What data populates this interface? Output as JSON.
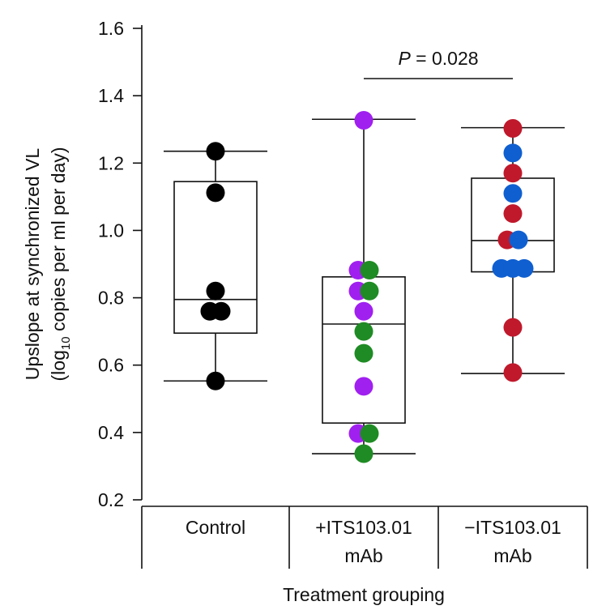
{
  "chart_data": {
    "type": "box",
    "title": "",
    "ylabel_line1": "Upslope at synchronized VL",
    "ylabel_line2_pre": "(log",
    "ylabel_line2_sub": "10",
    "ylabel_line2_post": " copies per ml per day)",
    "xlabel": "Treatment grouping",
    "ylim": [
      0.2,
      1.6
    ],
    "yticks": [
      "0.2",
      "0.4",
      "0.6",
      "0.8",
      "1.0",
      "1.2",
      "1.4",
      "1.6"
    ],
    "groups": [
      {
        "label_lines": [
          "Control"
        ],
        "box": {
          "whisker_low": 0.553,
          "q1": 0.695,
          "median": 0.795,
          "q3": 1.145,
          "whisker_high": 1.235
        },
        "points": [
          {
            "y": 1.235,
            "color": "black"
          },
          {
            "y": 1.112,
            "color": "black"
          },
          {
            "y": 0.82,
            "color": "black"
          },
          {
            "y": 0.76,
            "color": "black"
          },
          {
            "y": 0.76,
            "color": "black"
          },
          {
            "y": 0.553,
            "color": "black"
          }
        ]
      },
      {
        "label_lines": [
          "+ITS103.01",
          "mAb"
        ],
        "box": {
          "whisker_low": 0.337,
          "q1": 0.428,
          "median": 0.722,
          "q3": 0.862,
          "whisker_high": 1.33
        },
        "points": [
          {
            "y": 1.327,
            "color": "purple"
          },
          {
            "y": 0.882,
            "color": "purple"
          },
          {
            "y": 0.882,
            "color": "green"
          },
          {
            "y": 0.82,
            "color": "purple"
          },
          {
            "y": 0.82,
            "color": "green"
          },
          {
            "y": 0.76,
            "color": "purple"
          },
          {
            "y": 0.7,
            "color": "green"
          },
          {
            "y": 0.635,
            "color": "green"
          },
          {
            "y": 0.537,
            "color": "purple"
          },
          {
            "y": 0.397,
            "color": "purple"
          },
          {
            "y": 0.397,
            "color": "green"
          },
          {
            "y": 0.337,
            "color": "green"
          }
        ]
      },
      {
        "label_lines": [
          "−ITS103.01",
          "mAb"
        ],
        "box": {
          "whisker_low": 0.575,
          "q1": 0.877,
          "median": 0.97,
          "q3": 1.155,
          "whisker_high": 1.305
        },
        "points": [
          {
            "y": 1.303,
            "color": "red"
          },
          {
            "y": 1.23,
            "color": "blue"
          },
          {
            "y": 1.17,
            "color": "red"
          },
          {
            "y": 1.11,
            "color": "blue"
          },
          {
            "y": 1.05,
            "color": "red"
          },
          {
            "y": 0.972,
            "color": "red"
          },
          {
            "y": 0.972,
            "color": "blue"
          },
          {
            "y": 0.887,
            "color": "blue"
          },
          {
            "y": 0.887,
            "color": "blue"
          },
          {
            "y": 0.887,
            "color": "blue"
          },
          {
            "y": 0.712,
            "color": "red"
          },
          {
            "y": 0.578,
            "color": "red"
          }
        ]
      }
    ],
    "annotation": {
      "italic": "P",
      "text": " = 0.028",
      "between_groups": [
        1,
        2
      ]
    },
    "colors": {
      "black": "#000000",
      "purple": "#a020f0",
      "green": "#1f8b24",
      "red": "#c0192c",
      "blue": "#0f5fd0"
    }
  }
}
